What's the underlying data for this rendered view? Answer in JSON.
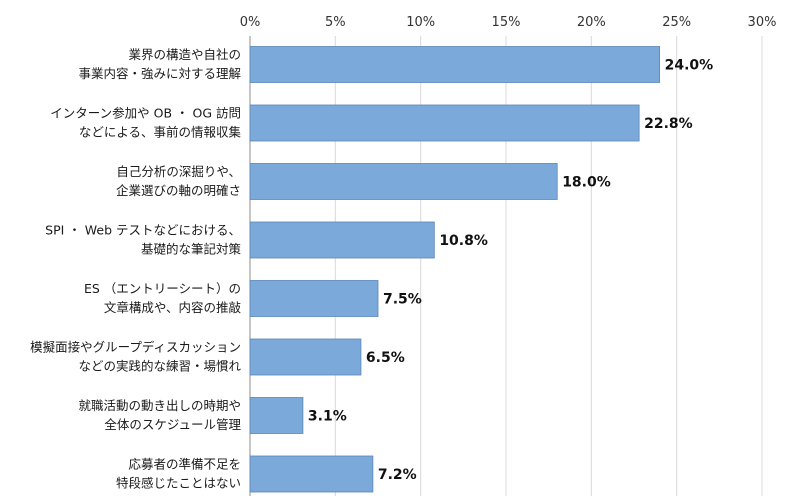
{
  "chart_data": {
    "type": "bar",
    "orientation": "horizontal",
    "categories": [
      [
        "業界の構造や自社の",
        "事業内容・強みに対する理解"
      ],
      [
        "インターン参加や OB ・ OG 訪問",
        "などによる、事前の情報収集"
      ],
      [
        "自己分析の深掘りや、",
        "企業選びの軸の明確さ"
      ],
      [
        "SPI ・ Web テストなどにおける、",
        "基礎的な筆記対策"
      ],
      [
        "ES （エントリーシート）の",
        "文章構成や、内容の推敲"
      ],
      [
        "模擬面接やグループディスカッション",
        "などの実践的な練習・場慣れ"
      ],
      [
        "就職活動の動き出しの時期や",
        "全体のスケジュール管理"
      ],
      [
        "応募者の準備不足を",
        "特段感じたことはない"
      ]
    ],
    "values": [
      24.0,
      22.8,
      18.0,
      10.8,
      7.5,
      6.5,
      3.1,
      7.2
    ],
    "data_labels": [
      "24.0%",
      "22.8%",
      "18.0%",
      "10.8%",
      "7.5%",
      "6.5%",
      "3.1%",
      "7.2%"
    ],
    "x_ticks": [
      0,
      5,
      10,
      15,
      20,
      25,
      30
    ],
    "x_tick_labels": [
      "0%",
      "5%",
      "10%",
      "15%",
      "20%",
      "25%",
      "30%"
    ],
    "xlim": [
      0,
      30
    ],
    "grid": true,
    "axis_position": "top",
    "bar_color": "#7ba9da",
    "bar_edge_color": "#5b86b8",
    "grid_color": "#d9d9d9",
    "title": "",
    "xlabel": "",
    "ylabel": ""
  }
}
